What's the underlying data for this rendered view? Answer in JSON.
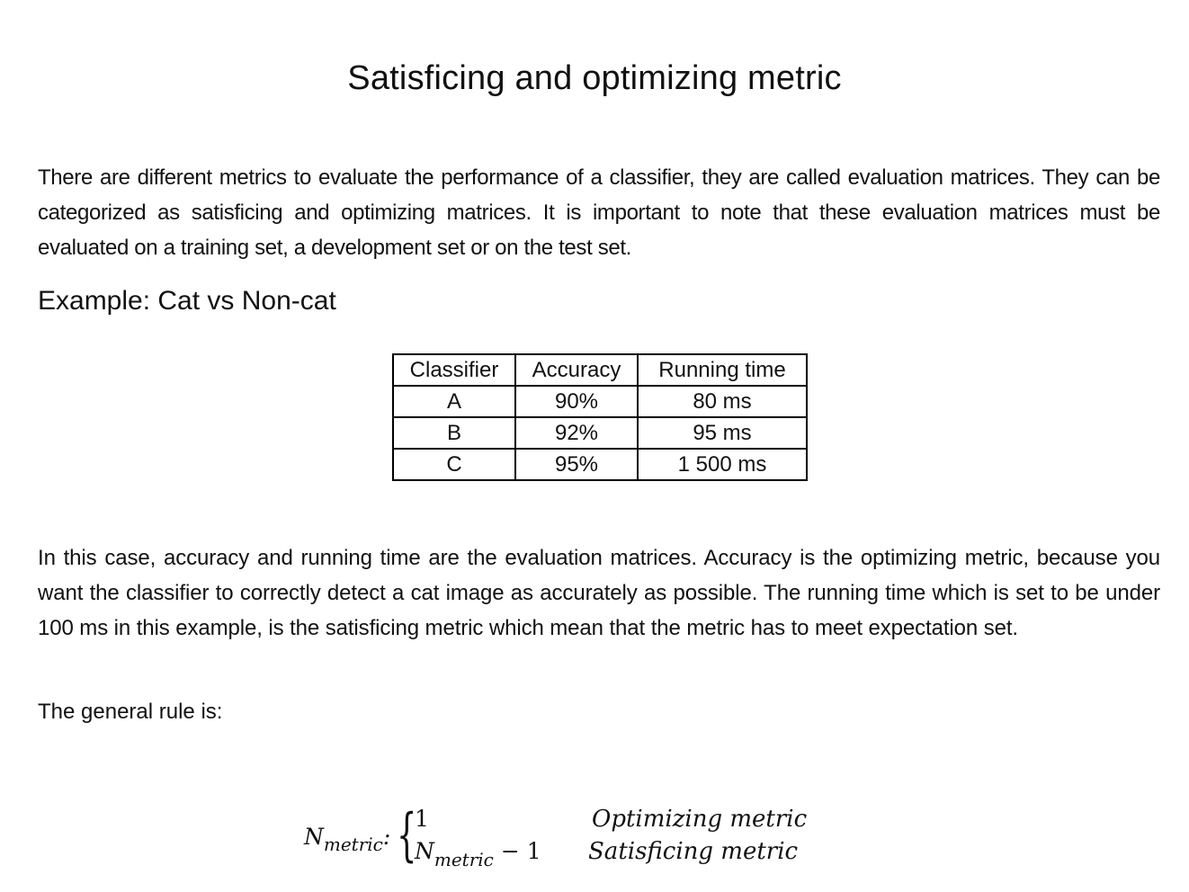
{
  "title": "Satisficing and optimizing metric",
  "intro_paragraph": "There are different metrics to evaluate the performance of a classifier, they are called evaluation matrices. They can be categorized as satisficing and optimizing matrices. It is important to note that these evaluation matrices must be evaluated on a training set, a development set or on the test set.",
  "example_heading": "Example: Cat vs Non-cat",
  "table": {
    "headers": [
      "Classifier",
      "Accuracy",
      "Running time"
    ],
    "rows": [
      [
        "A",
        "90%",
        "80 ms"
      ],
      [
        "B",
        "92%",
        "95 ms"
      ],
      [
        "C",
        "95%",
        "1 500 ms"
      ]
    ]
  },
  "explanation_paragraph": "In this case, accuracy and running time are the evaluation matrices. Accuracy is the optimizing metric, because you want the classifier to correctly detect a cat image as accurately as possible. The running time which is set to be under 100 ms in this example, is the satisficing metric which mean that the metric has to meet expectation set.",
  "rule_intro": "The general rule is:",
  "formula": {
    "lhs_symbol": "N",
    "lhs_subscript": "metric",
    "lhs_colon": ":",
    "brace": "{",
    "case1_value": "1",
    "case1_label": "Optimizing metric",
    "case2_symbol": "N",
    "case2_subscript": "metric",
    "case2_operator": " − 1",
    "case2_label": "Satisficing metric"
  }
}
